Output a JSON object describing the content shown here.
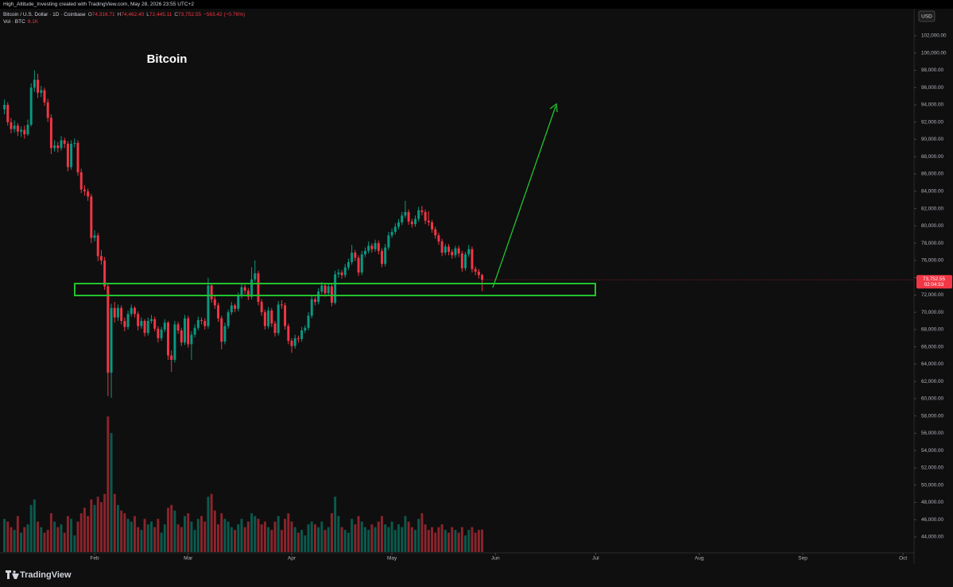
{
  "header": {
    "attribution": "High_Altitude_Investing created with TradingView.com, May 28, 2026 23:55 UTC+2",
    "symbol": "Bitcoin / U.S. Dollar · 1D · Coinbase",
    "ohlc_legend": [
      {
        "key": "O",
        "value": "74,316.71"
      },
      {
        "key": "H",
        "value": "74,462.40"
      },
      {
        "key": "L",
        "value": "72,445.11"
      },
      {
        "key": "C",
        "value": "73,752.55"
      }
    ],
    "change": "−563.42 (−0.76%)",
    "volume_key": "Vol · BTC",
    "volume_value": "8.1K"
  },
  "currency": "USD",
  "price_tag": {
    "price": "73,752.55",
    "countdown": "02:04:53"
  },
  "brand": "TradingView",
  "chart_data": {
    "type": "candlestick",
    "title": "Bitcoin",
    "up_color": "#089981",
    "down_color": "#f23645",
    "grid": false,
    "xlim": [
      -1.32,
      272.3
    ],
    "xticks": [
      {
        "value": 27,
        "label": "Feb"
      },
      {
        "value": 55,
        "label": "Mar"
      },
      {
        "value": 86,
        "label": "Apr"
      },
      {
        "value": 116,
        "label": "May"
      },
      {
        "value": 147,
        "label": "Jun"
      },
      {
        "value": 177,
        "label": "Jul"
      },
      {
        "value": 208,
        "label": "Aug"
      },
      {
        "value": 239,
        "label": "Sep"
      },
      {
        "value": 269,
        "label": "Oct"
      }
    ],
    "ylim": [
      42253,
      105033
    ],
    "yticks": [
      {
        "value": 44000,
        "label": "44,000.00"
      },
      {
        "value": 46000,
        "label": "46,000.00"
      },
      {
        "value": 48000,
        "label": "48,000.00"
      },
      {
        "value": 50000,
        "label": "50,000.00"
      },
      {
        "value": 52000,
        "label": "52,000.00"
      },
      {
        "value": 54000,
        "label": "54,000.00"
      },
      {
        "value": 56000,
        "label": "56,000.00"
      },
      {
        "value": 58000,
        "label": "58,000.00"
      },
      {
        "value": 60000,
        "label": "60,000.00"
      },
      {
        "value": 62000,
        "label": "62,000.00"
      },
      {
        "value": 64000,
        "label": "64,000.00"
      },
      {
        "value": 66000,
        "label": "66,000.00"
      },
      {
        "value": 68000,
        "label": "68,000.00"
      },
      {
        "value": 70000,
        "label": "70,000.00"
      },
      {
        "value": 72000,
        "label": "72,000.00"
      },
      {
        "value": 74000,
        "label": "74,000.00"
      },
      {
        "value": 76000,
        "label": "76,000.00"
      },
      {
        "value": 78000,
        "label": "78,000.00"
      },
      {
        "value": 80000,
        "label": "80,000.00"
      },
      {
        "value": 82000,
        "label": "82,000.00"
      },
      {
        "value": 84000,
        "label": "84,000.00"
      },
      {
        "value": 86000,
        "label": "86,000.00"
      },
      {
        "value": 88000,
        "label": "88,000.00"
      },
      {
        "value": 90000,
        "label": "90,000.00"
      },
      {
        "value": 92000,
        "label": "92,000.00"
      },
      {
        "value": 94000,
        "label": "94,000.00"
      },
      {
        "value": 96000,
        "label": "96,000.00"
      },
      {
        "value": 98000,
        "label": "98,000.00"
      },
      {
        "value": 100000,
        "label": "100,000.00"
      },
      {
        "value": 102000,
        "label": "102,000.00"
      }
    ],
    "y2lim": [
      0,
      196000
    ],
    "ohlc": [
      [
        93500,
        94600,
        92900,
        94000
      ],
      [
        94000,
        94300,
        91600,
        92000
      ],
      [
        92000,
        92500,
        90700,
        91200
      ],
      [
        91200,
        92200,
        90800,
        91600
      ],
      [
        91600,
        91900,
        90400,
        90900
      ],
      [
        90900,
        91500,
        90300,
        91100
      ],
      [
        91100,
        91600,
        90100,
        90600
      ],
      [
        90600,
        92300,
        90400,
        91700
      ],
      [
        91700,
        96500,
        91500,
        96000
      ],
      [
        96000,
        98000,
        95500,
        96900
      ],
      [
        96900,
        97600,
        94800,
        95400
      ],
      [
        95400,
        96200,
        94900,
        95700
      ],
      [
        95700,
        96000,
        93900,
        94300
      ],
      [
        94300,
        94700,
        92000,
        92500
      ],
      [
        92500,
        92900,
        88300,
        89000
      ],
      [
        89000,
        89900,
        88600,
        89300
      ],
      [
        89300,
        89700,
        88500,
        89000
      ],
      [
        89000,
        90400,
        88700,
        89900
      ],
      [
        89900,
        90200,
        89000,
        89500
      ],
      [
        89500,
        89800,
        86300,
        86800
      ],
      [
        86800,
        89900,
        86500,
        89500
      ],
      [
        89500,
        90100,
        89100,
        89600
      ],
      [
        89600,
        89900,
        85800,
        86200
      ],
      [
        86200,
        86600,
        83800,
        84200
      ],
      [
        84200,
        84700,
        83500,
        84000
      ],
      [
        84000,
        84300,
        82900,
        83400
      ],
      [
        83400,
        83700,
        78000,
        78600
      ],
      [
        78600,
        79500,
        78200,
        78900
      ],
      [
        78900,
        79200,
        75900,
        76500
      ],
      [
        76500,
        77200,
        75500,
        76000
      ],
      [
        76000,
        76400,
        72600,
        73000
      ],
      [
        73000,
        73400,
        60300,
        63000
      ],
      [
        63000,
        71000,
        60100,
        70500
      ],
      [
        70500,
        71200,
        68800,
        69400
      ],
      [
        69400,
        70900,
        69000,
        70500
      ],
      [
        70500,
        70800,
        68600,
        69000
      ],
      [
        69000,
        69400,
        67800,
        68300
      ],
      [
        68300,
        70200,
        68000,
        69800
      ],
      [
        69800,
        70900,
        69500,
        70500
      ],
      [
        70500,
        70700,
        69400,
        69800
      ],
      [
        69800,
        70100,
        67900,
        68400
      ],
      [
        68400,
        69400,
        68100,
        69000
      ],
      [
        69000,
        69200,
        67200,
        67600
      ],
      [
        67600,
        69400,
        67300,
        69000
      ],
      [
        69000,
        69700,
        68700,
        69200
      ],
      [
        69200,
        69500,
        67800,
        68100
      ],
      [
        68100,
        68400,
        66500,
        67000
      ],
      [
        67000,
        68300,
        66700,
        68000
      ],
      [
        68000,
        69200,
        67700,
        68800
      ],
      [
        68800,
        69000,
        64500,
        65000
      ],
      [
        65000,
        65600,
        63100,
        64500
      ],
      [
        64500,
        69000,
        64200,
        68600
      ],
      [
        68600,
        68900,
        67500,
        67900
      ],
      [
        67900,
        68200,
        66100,
        66500
      ],
      [
        66500,
        69700,
        66200,
        69300
      ],
      [
        69300,
        69600,
        65900,
        66300
      ],
      [
        66300,
        67800,
        64500,
        67400
      ],
      [
        67400,
        68600,
        67100,
        68200
      ],
      [
        68200,
        69500,
        67900,
        69100
      ],
      [
        69100,
        69400,
        68600,
        69000
      ],
      [
        69000,
        69300,
        68000,
        68400
      ],
      [
        68400,
        74000,
        68100,
        73100
      ],
      [
        73100,
        73400,
        71100,
        71500
      ],
      [
        71500,
        71900,
        70400,
        70800
      ],
      [
        70800,
        71100,
        68900,
        69300
      ],
      [
        69300,
        69600,
        65700,
        66600
      ],
      [
        66600,
        68800,
        66300,
        68400
      ],
      [
        68400,
        70300,
        68100,
        70000
      ],
      [
        70000,
        71200,
        69700,
        70800
      ],
      [
        70800,
        71000,
        70000,
        70400
      ],
      [
        70400,
        72300,
        70100,
        71900
      ],
      [
        71900,
        73300,
        71600,
        72900
      ],
      [
        72900,
        73200,
        72100,
        72500
      ],
      [
        72500,
        72800,
        71400,
        71800
      ],
      [
        71800,
        75200,
        71500,
        73800
      ],
      [
        73800,
        76000,
        73500,
        74500
      ],
      [
        74500,
        74800,
        70800,
        71200
      ],
      [
        71200,
        71500,
        69600,
        70000
      ],
      [
        70000,
        70300,
        68000,
        68400
      ],
      [
        68400,
        70600,
        68100,
        70200
      ],
      [
        70200,
        70500,
        68300,
        68700
      ],
      [
        68700,
        69000,
        67200,
        67600
      ],
      [
        67600,
        71300,
        67300,
        70900
      ],
      [
        70900,
        71400,
        70400,
        70800
      ],
      [
        70800,
        71100,
        68000,
        68400
      ],
      [
        68400,
        68700,
        66300,
        66700
      ],
      [
        66700,
        67000,
        65300,
        66100
      ],
      [
        66100,
        67400,
        65800,
        67000
      ],
      [
        67000,
        67300,
        66500,
        66900
      ],
      [
        66900,
        68300,
        66600,
        67900
      ],
      [
        67900,
        68500,
        67600,
        68200
      ],
      [
        68200,
        70000,
        67900,
        69600
      ],
      [
        69600,
        71900,
        69300,
        71500
      ],
      [
        71500,
        71800,
        70800,
        71200
      ],
      [
        71200,
        72800,
        70900,
        72400
      ],
      [
        72400,
        73500,
        72100,
        73100
      ],
      [
        73100,
        73400,
        71800,
        72200
      ],
      [
        72200,
        73400,
        71900,
        73000
      ],
      [
        73000,
        73300,
        70700,
        71100
      ],
      [
        71100,
        74800,
        70900,
        74400
      ],
      [
        74400,
        75000,
        74000,
        74600
      ],
      [
        74600,
        74900,
        73900,
        74300
      ],
      [
        74300,
        75600,
        74000,
        75200
      ],
      [
        75200,
        76200,
        74900,
        75800
      ],
      [
        75800,
        77800,
        75500,
        76900
      ],
      [
        76900,
        77200,
        75900,
        76300
      ],
      [
        76300,
        76600,
        74200,
        74600
      ],
      [
        74600,
        77100,
        74300,
        76700
      ],
      [
        76700,
        77500,
        76400,
        77100
      ],
      [
        77100,
        78200,
        76800,
        77700
      ],
      [
        77700,
        78000,
        76900,
        77300
      ],
      [
        77300,
        78400,
        77000,
        78000
      ],
      [
        78000,
        78300,
        76700,
        77100
      ],
      [
        77100,
        77400,
        75200,
        75600
      ],
      [
        75600,
        77900,
        75300,
        77500
      ],
      [
        77500,
        79300,
        77200,
        78900
      ],
      [
        78900,
        79700,
        78600,
        79300
      ],
      [
        79300,
        80300,
        79000,
        79900
      ],
      [
        79900,
        80800,
        79600,
        80400
      ],
      [
        80400,
        81600,
        80100,
        81200
      ],
      [
        81200,
        82900,
        80900,
        81600
      ],
      [
        81600,
        81900,
        80100,
        80500
      ],
      [
        80500,
        80800,
        79800,
        80200
      ],
      [
        80200,
        81200,
        79900,
        80800
      ],
      [
        80800,
        82200,
        80500,
        81800
      ],
      [
        81800,
        82300,
        81200,
        81600
      ],
      [
        81600,
        81900,
        80200,
        80600
      ],
      [
        80600,
        81700,
        80000,
        80400
      ],
      [
        80400,
        80700,
        79200,
        79600
      ],
      [
        79600,
        79900,
        78500,
        78900
      ],
      [
        78900,
        79200,
        77800,
        78200
      ],
      [
        78200,
        78500,
        76500,
        76900
      ],
      [
        76900,
        77900,
        76600,
        77600
      ],
      [
        77600,
        77900,
        76600,
        77000
      ],
      [
        77000,
        77300,
        76200,
        76600
      ],
      [
        76600,
        77700,
        76300,
        77400
      ],
      [
        77400,
        77700,
        76400,
        76800
      ],
      [
        76800,
        77100,
        74700,
        75100
      ],
      [
        75100,
        77000,
        74800,
        76700
      ],
      [
        76700,
        77800,
        76400,
        77300
      ],
      [
        77300,
        77600,
        74600,
        75000
      ],
      [
        75000,
        75300,
        74300,
        74700
      ],
      [
        74700,
        75000,
        73900,
        74300
      ],
      [
        74316.71,
        74462.4,
        72445.11,
        73752.55
      ]
    ],
    "volume": [
      12000,
      11000,
      9000,
      8000,
      13000,
      7000,
      9000,
      10000,
      17000,
      19000,
      11000,
      9000,
      7000,
      8000,
      14000,
      11000,
      9000,
      10000,
      7000,
      13000,
      12000,
      6000,
      11000,
      14000,
      16000,
      13000,
      19000,
      17000,
      20000,
      18000,
      21000,
      49000,
      43000,
      21000,
      17000,
      15000,
      14000,
      12000,
      11000,
      13000,
      9000,
      8000,
      12000,
      10000,
      11000,
      9000,
      12000,
      7000,
      10000,
      16000,
      17000,
      15000,
      10000,
      9000,
      13000,
      14000,
      11000,
      8000,
      12000,
      13000,
      11000,
      20000,
      21000,
      15000,
      10000,
      14000,
      12000,
      11000,
      9000,
      8000,
      10000,
      12000,
      9000,
      11000,
      14000,
      13000,
      12000,
      10000,
      11000,
      9000,
      8000,
      11000,
      13000,
      8000,
      12000,
      14000,
      11000,
      9000,
      7000,
      8000,
      6000,
      10000,
      11000,
      10000,
      9000,
      11000,
      8000,
      9000,
      14000,
      20000,
      13000,
      9000,
      8000,
      7000,
      12000,
      10000,
      13000,
      11000,
      9000,
      8000,
      10000,
      9000,
      11000,
      13000,
      10000,
      9000,
      11000,
      8000,
      10000,
      9000,
      13000,
      11000,
      9000,
      8000,
      12000,
      14000,
      10000,
      8000,
      9000,
      7000,
      9000,
      10000,
      8000,
      7000,
      9000,
      8000,
      7000,
      9000,
      6000,
      8000,
      9000,
      7000,
      8000,
      8100
    ]
  }
}
